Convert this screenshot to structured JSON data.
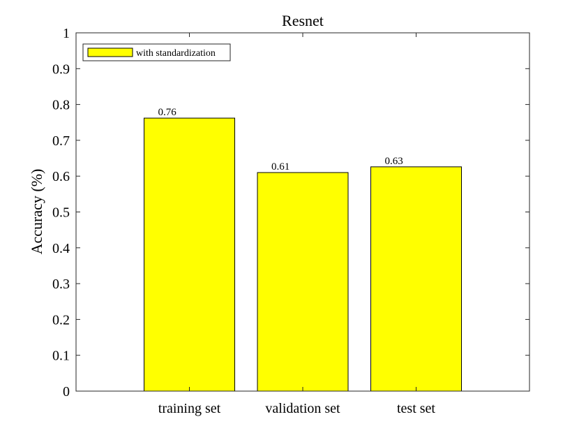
{
  "chart_data": {
    "type": "bar",
    "title": "Resnet",
    "xlabel": "",
    "ylabel": "Accuracy (%)",
    "categories": [
      "training set",
      "validation set",
      "test set"
    ],
    "series": [
      {
        "name": "with standardization",
        "values": [
          0.762,
          0.61,
          0.626
        ],
        "data_labels": [
          "0.76",
          "0.61",
          "0.63"
        ],
        "color": "#ffff00"
      }
    ],
    "ylim": [
      0,
      1
    ],
    "yticks": [
      "0",
      "0.1",
      "0.2",
      "0.3",
      "0.4",
      "0.5",
      "0.6",
      "0.7",
      "0.8",
      "0.9",
      "1"
    ],
    "xlim": [
      0,
      4
    ],
    "grid": false,
    "legend_position": "top-left"
  }
}
